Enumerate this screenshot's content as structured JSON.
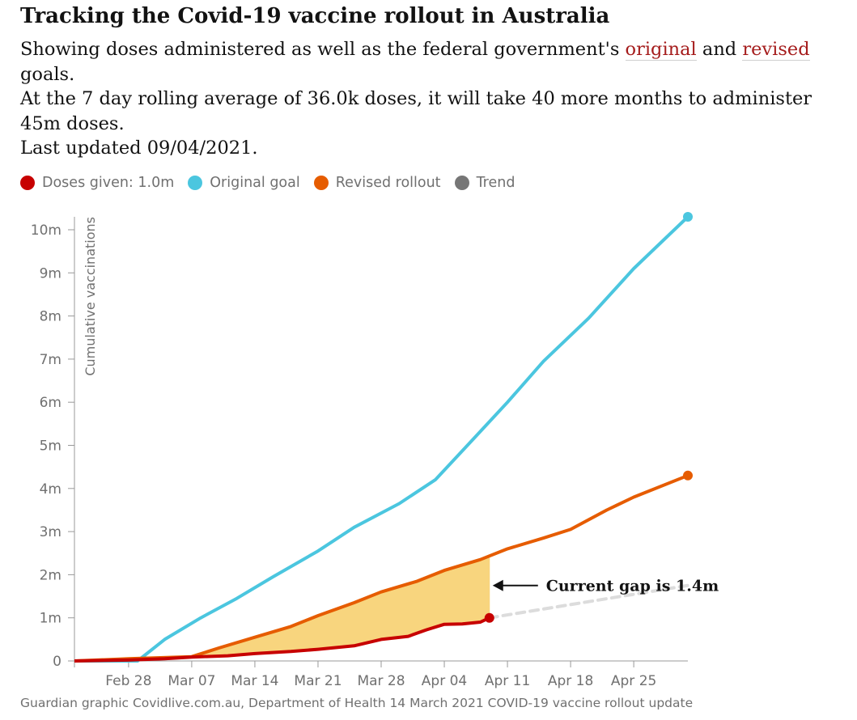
{
  "header": {
    "title": "Tracking the Covid-19 vaccine rollout in Australia",
    "dek_part1": "Showing doses administered as well as the federal government's",
    "dek_link_original": "original",
    "dek_and": "and",
    "dek_link_revised": "revised",
    "dek_part2": "goals.",
    "dek_line2": "At the 7 day rolling average of 36.0k doses, it will take 40 more months to administer 45m doses.",
    "dek_line3": "Last updated 09/04/2021."
  },
  "legend": [
    {
      "label": "Doses given: 1.0m",
      "color": "#c70000"
    },
    {
      "label": "Original goal",
      "color": "#4bc6df"
    },
    {
      "label": "Revised rollout",
      "color": "#e65c00"
    },
    {
      "label": "Trend",
      "color": "#767676"
    }
  ],
  "source": "Guardian graphic Covidlive.com.au, Department of Health 14 March 2021 COVID-19 vaccine rollout update",
  "chart_data": {
    "type": "line",
    "ylabel": "Cumulative vaccinations",
    "ylim": [
      0,
      10.3
    ],
    "y_unit": "millions",
    "y_ticks": [
      0,
      1,
      2,
      3,
      4,
      5,
      6,
      7,
      8,
      9,
      10
    ],
    "y_tick_labels": [
      "0",
      "1m",
      "2m",
      "3m",
      "4m",
      "5m",
      "6m",
      "7m",
      "8m",
      "9m",
      "10m"
    ],
    "x_range": [
      "2021-02-22",
      "2021-05-01"
    ],
    "x_ticks": [
      "2021-02-28",
      "2021-03-07",
      "2021-03-14",
      "2021-03-21",
      "2021-03-28",
      "2021-04-04",
      "2021-04-11",
      "2021-04-18",
      "2021-04-25"
    ],
    "x_tick_labels": [
      "Feb 28",
      "Mar 07",
      "Mar 14",
      "Mar 21",
      "Mar 28",
      "Apr 04",
      "Apr 11",
      "Apr 18",
      "Apr 25"
    ],
    "grid": false,
    "legend_position": "top-left",
    "series": [
      {
        "name": "Original goal",
        "color": "#4bc6df",
        "points": [
          [
            "2021-02-22",
            0
          ],
          [
            "2021-03-01",
            0
          ],
          [
            "2021-03-04",
            0.5
          ],
          [
            "2021-03-08",
            1.0
          ],
          [
            "2021-03-12",
            1.45
          ],
          [
            "2021-03-16",
            1.95
          ],
          [
            "2021-03-21",
            2.55
          ],
          [
            "2021-03-25",
            3.1
          ],
          [
            "2021-03-30",
            3.65
          ],
          [
            "2021-04-03",
            4.2
          ],
          [
            "2021-04-07",
            5.1
          ],
          [
            "2021-04-11",
            6.0
          ],
          [
            "2021-04-15",
            6.95
          ],
          [
            "2021-04-20",
            7.95
          ],
          [
            "2021-04-25",
            9.1
          ],
          [
            "2021-05-01",
            10.3
          ]
        ]
      },
      {
        "name": "Revised rollout",
        "color": "#e65c00",
        "points": [
          [
            "2021-02-22",
            0
          ],
          [
            "2021-02-28",
            0.05
          ],
          [
            "2021-03-07",
            0.1
          ],
          [
            "2021-03-10",
            0.3
          ],
          [
            "2021-03-14",
            0.55
          ],
          [
            "2021-03-18",
            0.8
          ],
          [
            "2021-03-21",
            1.05
          ],
          [
            "2021-03-25",
            1.35
          ],
          [
            "2021-03-28",
            1.6
          ],
          [
            "2021-04-01",
            1.85
          ],
          [
            "2021-04-04",
            2.1
          ],
          [
            "2021-04-08",
            2.35
          ],
          [
            "2021-04-11",
            2.6
          ],
          [
            "2021-04-15",
            2.85
          ],
          [
            "2021-04-18",
            3.05
          ],
          [
            "2021-04-22",
            3.5
          ],
          [
            "2021-04-25",
            3.8
          ],
          [
            "2021-05-01",
            4.3
          ]
        ]
      },
      {
        "name": "Doses given",
        "color": "#c70000",
        "points": [
          [
            "2021-02-22",
            0
          ],
          [
            "2021-02-28",
            0.02
          ],
          [
            "2021-03-04",
            0.05
          ],
          [
            "2021-03-07",
            0.09
          ],
          [
            "2021-03-11",
            0.12
          ],
          [
            "2021-03-14",
            0.17
          ],
          [
            "2021-03-18",
            0.22
          ],
          [
            "2021-03-21",
            0.27
          ],
          [
            "2021-03-25",
            0.35
          ],
          [
            "2021-03-28",
            0.5
          ],
          [
            "2021-03-31",
            0.57
          ],
          [
            "2021-04-02",
            0.72
          ],
          [
            "2021-04-04",
            0.85
          ],
          [
            "2021-04-06",
            0.86
          ],
          [
            "2021-04-08",
            0.9
          ],
          [
            "2021-04-09",
            1.0
          ]
        ]
      },
      {
        "name": "Trend",
        "color": "#767676",
        "points": [
          [
            "2021-04-09",
            1.0
          ],
          [
            "2021-05-01",
            1.75
          ]
        ]
      }
    ],
    "gap_fill": {
      "from": "2021-03-07",
      "to": "2021-04-09",
      "color": "#f8d57e"
    },
    "annotation": "Current gap is 1.4m"
  }
}
